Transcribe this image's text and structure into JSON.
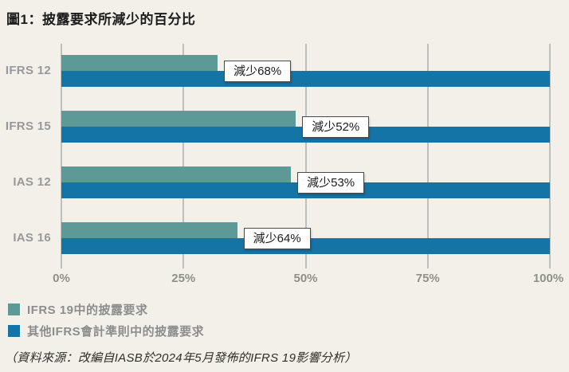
{
  "title": "圖1：披露要求所減少的百分比",
  "source": "（資料來源：改編自IASB於2024年5月發佈的IFRS 19影響分析）",
  "colors": {
    "background": "#f2f0e9",
    "series_teal": "#5d9a97",
    "series_blue": "#1474a6",
    "gridline": "#bdbfba",
    "axis_text": "#8e908e",
    "category_text": "#97989b",
    "title_text": "#1c1c1c"
  },
  "legend": {
    "items": [
      {
        "label": "IFRS 19中的披露要求",
        "color": "#5d9a97"
      },
      {
        "label": "其他IFRS會計準則中的披露要求",
        "color": "#1474a6"
      }
    ]
  },
  "chart_data": {
    "type": "bar",
    "orientation": "horizontal",
    "title": "圖1：披露要求所減少的百分比",
    "categories": [
      "IFRS 12",
      "IFRS 15",
      "IAS 12",
      "IAS 16"
    ],
    "series": [
      {
        "name": "IFRS 19中的披露要求",
        "color": "#5d9a97",
        "values": [
          32,
          48,
          47,
          36
        ]
      },
      {
        "name": "其他IFRS會計準則中的披露要求",
        "color": "#1474a6",
        "values": [
          100,
          100,
          100,
          100
        ]
      }
    ],
    "bar_labels": [
      "減少68%",
      "減少52%",
      "減少53%",
      "減少64%"
    ],
    "reduction_percent": [
      68,
      52,
      53,
      64
    ],
    "xlabel": "",
    "ylabel": "",
    "xlim": [
      0,
      100
    ],
    "x_ticks": [
      "0%",
      "25%",
      "50%",
      "75%",
      "100%"
    ],
    "grid": true,
    "legend_position": "bottom-left"
  }
}
